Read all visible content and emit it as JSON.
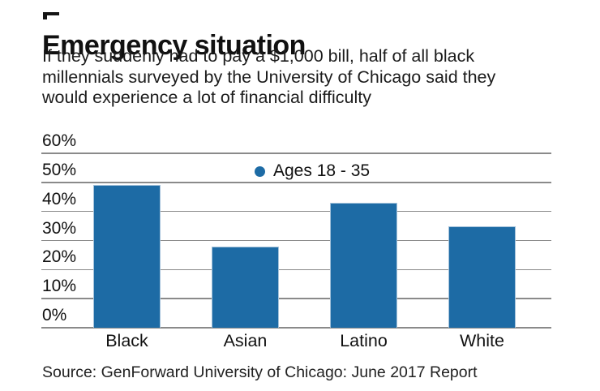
{
  "page": {
    "title": "Emergency situation",
    "subtitle_lines": [
      "If they suddenly had to pay a $1,000 bill, half of all black",
      "millennials surveyed by the University of Chicago said they",
      "would experience a lot of financial difficulty"
    ],
    "source": "Source: GenForward University of Chicago: June 2017 Report"
  },
  "chart_data": {
    "type": "bar",
    "title": "Emergency situation",
    "categories": [
      "Black",
      "Asian",
      "Latino",
      "White"
    ],
    "values": [
      49,
      28,
      43,
      35
    ],
    "unit": "%",
    "ylim": [
      0,
      60
    ],
    "yticks": [
      0,
      10,
      20,
      30,
      40,
      50,
      60
    ],
    "ytick_labels": [
      "0%",
      "10%",
      "20%",
      "30%",
      "40%",
      "50%",
      "60%"
    ],
    "grid": true,
    "legend": {
      "label": "Ages 18 - 35",
      "marker": "circle",
      "position": "top-center"
    },
    "colors": {
      "bar": "#1d6ba5",
      "bar_border": "#a4c2da",
      "grid": "#8a8a8a",
      "text": "#111111"
    }
  }
}
